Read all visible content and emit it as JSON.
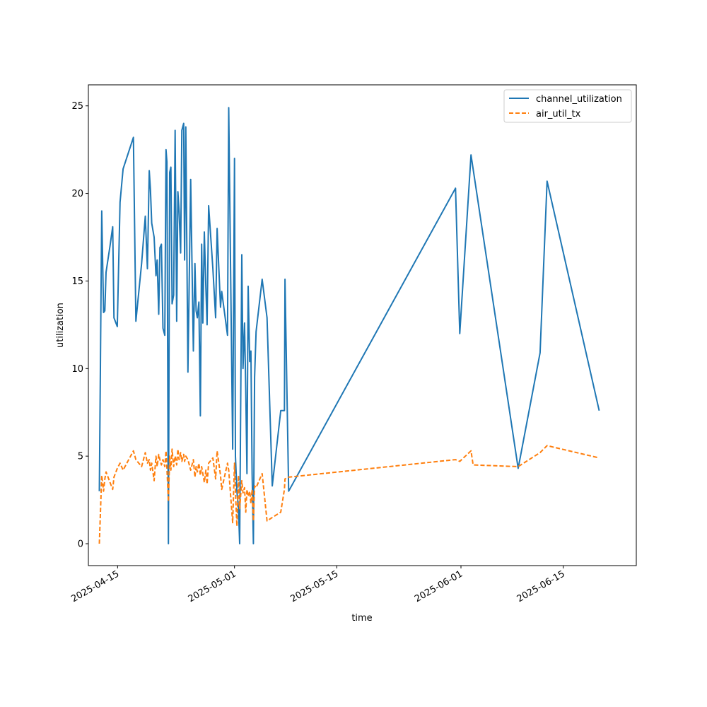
{
  "chart_data": {
    "type": "line",
    "title": "",
    "xlabel": "time",
    "ylabel": "utilization",
    "x_type": "date",
    "xlim": [
      "2025-04-11",
      "2025-06-25"
    ],
    "ylim": [
      -1.25,
      26.2
    ],
    "x_ticks": [
      "2025-04-15",
      "2025-05-01",
      "2025-05-15",
      "2025-06-01",
      "2025-06-15"
    ],
    "y_ticks": [
      0,
      5,
      10,
      15,
      20,
      25
    ],
    "legend": {
      "position": "top-right"
    },
    "grid": false,
    "series": [
      {
        "name": "channel_utilization",
        "color": "#1f77b4",
        "linestyle": "solid",
        "points": [
          [
            "2025-04-12T12:00",
            3.0
          ],
          [
            "2025-04-12T20:00",
            19.0
          ],
          [
            "2025-04-13T02:00",
            13.2
          ],
          [
            "2025-04-13T06:00",
            13.3
          ],
          [
            "2025-04-13T10:00",
            15.5
          ],
          [
            "2025-04-13T23:00",
            17.0
          ],
          [
            "2025-04-14T08:00",
            18.1
          ],
          [
            "2025-04-14T12:00",
            12.9
          ],
          [
            "2025-04-14T23:00",
            12.4
          ],
          [
            "2025-04-15T08:00",
            19.5
          ],
          [
            "2025-04-15T18:00",
            21.4
          ],
          [
            "2025-04-17T04:00",
            23.2
          ],
          [
            "2025-04-17T12:00",
            12.7
          ],
          [
            "2025-04-18T07:00",
            16.0
          ],
          [
            "2025-04-18T19:00",
            18.7
          ],
          [
            "2025-04-19T02:00",
            15.7
          ],
          [
            "2025-04-19T08:00",
            21.3
          ],
          [
            "2025-04-19T12:00",
            20.2
          ],
          [
            "2025-04-19T16:00",
            18.3
          ],
          [
            "2025-04-20T00:00",
            17.5
          ],
          [
            "2025-04-20T06:00",
            15.3
          ],
          [
            "2025-04-20T10:00",
            16.2
          ],
          [
            "2025-04-20T15:00",
            13.1
          ],
          [
            "2025-04-20T19:00",
            16.9
          ],
          [
            "2025-04-21T00:00",
            17.1
          ],
          [
            "2025-04-21T05:00",
            12.3
          ],
          [
            "2025-04-21T11:00",
            11.9
          ],
          [
            "2025-04-21T15:00",
            22.5
          ],
          [
            "2025-04-21T18:00",
            21.8
          ],
          [
            "2025-04-21T23:00",
            0.0
          ],
          [
            "2025-04-22T03:00",
            21.2
          ],
          [
            "2025-04-22T07:00",
            21.5
          ],
          [
            "2025-04-22T11:00",
            13.7
          ],
          [
            "2025-04-22T16:00",
            14.2
          ],
          [
            "2025-04-22T21:00",
            23.6
          ],
          [
            "2025-04-23T02:00",
            12.7
          ],
          [
            "2025-04-23T06:00",
            20.1
          ],
          [
            "2025-04-23T10:00",
            19.0
          ],
          [
            "2025-04-23T15:00",
            16.6
          ],
          [
            "2025-04-23T19:00",
            23.6
          ],
          [
            "2025-04-24T01:00",
            24.0
          ],
          [
            "2025-04-24T04:00",
            16.2
          ],
          [
            "2025-04-24T08:00",
            23.8
          ],
          [
            "2025-04-24T15:00",
            9.8
          ],
          [
            "2025-04-25T00:00",
            20.8
          ],
          [
            "2025-04-25T09:00",
            11.0
          ],
          [
            "2025-04-25T14:00",
            16.0
          ],
          [
            "2025-04-25T18:00",
            13.3
          ],
          [
            "2025-04-25T22:00",
            12.9
          ],
          [
            "2025-04-26T03:00",
            13.8
          ],
          [
            "2025-04-26T08:00",
            7.3
          ],
          [
            "2025-04-26T12:00",
            17.1
          ],
          [
            "2025-04-26T16:00",
            12.6
          ],
          [
            "2025-04-26T21:00",
            17.8
          ],
          [
            "2025-04-27T02:00",
            14.6
          ],
          [
            "2025-04-27T06:00",
            12.5
          ],
          [
            "2025-04-27T11:00",
            19.3
          ],
          [
            "2025-04-28T01:00",
            15.7
          ],
          [
            "2025-04-28T10:00",
            12.9
          ],
          [
            "2025-04-28T15:00",
            18.0
          ],
          [
            "2025-04-29T02:00",
            13.5
          ],
          [
            "2025-04-29T06:00",
            14.4
          ],
          [
            "2025-04-30T01:00",
            11.9
          ],
          [
            "2025-04-30T05:00",
            24.9
          ],
          [
            "2025-04-30T18:00",
            5.4
          ],
          [
            "2025-05-01T00:00",
            22.0
          ],
          [
            "2025-05-01T03:00",
            5.0
          ],
          [
            "2025-05-01T08:00",
            3.0
          ],
          [
            "2025-05-01T13:00",
            2.0
          ],
          [
            "2025-05-01T17:00",
            0.0
          ],
          [
            "2025-05-02T00:00",
            16.5
          ],
          [
            "2025-05-02T04:00",
            10.0
          ],
          [
            "2025-05-02T09:00",
            12.6
          ],
          [
            "2025-05-02T13:00",
            8.8
          ],
          [
            "2025-05-02T17:00",
            4.0
          ],
          [
            "2025-05-02T21:00",
            14.7
          ],
          [
            "2025-05-03T02:00",
            10.4
          ],
          [
            "2025-05-03T06:00",
            11.0
          ],
          [
            "2025-05-03T10:00",
            4.0
          ],
          [
            "2025-05-03T14:00",
            0.0
          ],
          [
            "2025-05-03T18:00",
            9.5
          ],
          [
            "2025-05-03T23:00",
            12.1
          ],
          [
            "2025-05-04T19:00",
            15.1
          ],
          [
            "2025-05-05T11:00",
            12.9
          ],
          [
            "2025-05-06T04:00",
            3.3
          ],
          [
            "2025-05-07T08:00",
            7.6
          ],
          [
            "2025-05-07T20:00",
            7.6
          ],
          [
            "2025-05-07T22:00",
            15.1
          ],
          [
            "2025-05-08T10:00",
            3.0
          ],
          [
            "2025-05-31T06:00",
            20.3
          ],
          [
            "2025-05-31T20:00",
            12.0
          ],
          [
            "2025-06-02T09:00",
            22.2
          ],
          [
            "2025-06-08T20:00",
            4.3
          ],
          [
            "2025-06-11T20:00",
            10.9
          ],
          [
            "2025-06-12T19:00",
            20.7
          ],
          [
            "2025-06-19T22:00",
            7.6
          ]
        ]
      },
      {
        "name": "air_util_tx",
        "color": "#ff7f0e",
        "linestyle": "dashed",
        "points": [
          [
            "2025-04-12T12:00",
            0.0
          ],
          [
            "2025-04-12T20:00",
            3.9
          ],
          [
            "2025-04-13T02:00",
            3.0
          ],
          [
            "2025-04-13T06:00",
            3.7
          ],
          [
            "2025-04-13T10:00",
            4.1
          ],
          [
            "2025-04-13T23:00",
            3.5
          ],
          [
            "2025-04-14T08:00",
            3.1
          ],
          [
            "2025-04-14T12:00",
            3.8
          ],
          [
            "2025-04-14T23:00",
            4.3
          ],
          [
            "2025-04-15T08:00",
            4.6
          ],
          [
            "2025-04-15T18:00",
            4.2
          ],
          [
            "2025-04-17T04:00",
            5.3
          ],
          [
            "2025-04-17T12:00",
            4.8
          ],
          [
            "2025-04-18T07:00",
            4.4
          ],
          [
            "2025-04-18T19:00",
            5.2
          ],
          [
            "2025-04-19T02:00",
            4.6
          ],
          [
            "2025-04-19T08:00",
            4.8
          ],
          [
            "2025-04-19T12:00",
            4.2
          ],
          [
            "2025-04-19T16:00",
            4.6
          ],
          [
            "2025-04-20T00:00",
            3.6
          ],
          [
            "2025-04-20T06:00",
            5.0
          ],
          [
            "2025-04-20T10:00",
            4.4
          ],
          [
            "2025-04-20T15:00",
            5.1
          ],
          [
            "2025-04-20T19:00",
            4.8
          ],
          [
            "2025-04-21T00:00",
            4.5
          ],
          [
            "2025-04-21T05:00",
            4.8
          ],
          [
            "2025-04-21T11:00",
            4.4
          ],
          [
            "2025-04-21T15:00",
            5.3
          ],
          [
            "2025-04-21T18:00",
            4.3
          ],
          [
            "2025-04-21T23:00",
            2.4
          ],
          [
            "2025-04-22T03:00",
            5.0
          ],
          [
            "2025-04-22T07:00",
            4.2
          ],
          [
            "2025-04-22T11:00",
            5.4
          ],
          [
            "2025-04-22T16:00",
            4.4
          ],
          [
            "2025-04-22T21:00",
            5.0
          ],
          [
            "2025-04-23T02:00",
            4.5
          ],
          [
            "2025-04-23T06:00",
            5.4
          ],
          [
            "2025-04-23T10:00",
            4.8
          ],
          [
            "2025-04-23T15:00",
            5.2
          ],
          [
            "2025-04-23T19:00",
            4.7
          ],
          [
            "2025-04-24T01:00",
            5.1
          ],
          [
            "2025-04-24T04:00",
            4.7
          ],
          [
            "2025-04-24T08:00",
            5.0
          ],
          [
            "2025-04-24T15:00",
            4.8
          ],
          [
            "2025-04-25T00:00",
            4.2
          ],
          [
            "2025-04-25T09:00",
            4.8
          ],
          [
            "2025-04-25T14:00",
            3.8
          ],
          [
            "2025-04-25T18:00",
            4.4
          ],
          [
            "2025-04-25T22:00",
            4.1
          ],
          [
            "2025-04-26T03:00",
            4.6
          ],
          [
            "2025-04-26T08:00",
            3.9
          ],
          [
            "2025-04-26T12:00",
            4.4
          ],
          [
            "2025-04-26T16:00",
            4.0
          ],
          [
            "2025-04-26T21:00",
            3.5
          ],
          [
            "2025-04-27T02:00",
            4.2
          ],
          [
            "2025-04-27T06:00",
            3.4
          ],
          [
            "2025-04-27T11:00",
            4.6
          ],
          [
            "2025-04-28T01:00",
            4.9
          ],
          [
            "2025-04-28T10:00",
            3.7
          ],
          [
            "2025-04-28T15:00",
            5.3
          ],
          [
            "2025-04-29T02:00",
            3.9
          ],
          [
            "2025-04-29T06:00",
            3.1
          ],
          [
            "2025-04-30T01:00",
            4.6
          ],
          [
            "2025-04-30T05:00",
            4.2
          ],
          [
            "2025-04-30T18:00",
            1.2
          ],
          [
            "2025-05-01T00:00",
            4.6
          ],
          [
            "2025-05-01T03:00",
            3.0
          ],
          [
            "2025-05-01T08:00",
            1.0
          ],
          [
            "2025-05-01T13:00",
            3.9
          ],
          [
            "2025-05-01T17:00",
            2.0
          ],
          [
            "2025-05-02T00:00",
            3.6
          ],
          [
            "2025-05-02T04:00",
            2.9
          ],
          [
            "2025-05-02T09:00",
            3.2
          ],
          [
            "2025-05-02T13:00",
            1.8
          ],
          [
            "2025-05-02T17:00",
            3.1
          ],
          [
            "2025-05-02T21:00",
            2.7
          ],
          [
            "2025-05-03T02:00",
            3.0
          ],
          [
            "2025-05-03T06:00",
            2.3
          ],
          [
            "2025-05-03T10:00",
            3.1
          ],
          [
            "2025-05-03T14:00",
            1.3
          ],
          [
            "2025-05-03T18:00",
            3.3
          ],
          [
            "2025-05-03T23:00",
            3.2
          ],
          [
            "2025-05-04T19:00",
            4.0
          ],
          [
            "2025-05-05T11:00",
            1.3
          ],
          [
            "2025-05-06T04:00",
            1.5
          ],
          [
            "2025-05-07T08:00",
            1.8
          ],
          [
            "2025-05-07T20:00",
            3.1
          ],
          [
            "2025-05-07T22:00",
            3.7
          ],
          [
            "2025-05-08T10:00",
            3.8
          ],
          [
            "2025-05-31T06:00",
            4.8
          ],
          [
            "2025-05-31T20:00",
            4.7
          ],
          [
            "2025-06-02T09:00",
            5.3
          ],
          [
            "2025-06-02T16:00",
            4.5
          ],
          [
            "2025-06-08T20:00",
            4.4
          ],
          [
            "2025-06-11T20:00",
            5.2
          ],
          [
            "2025-06-12T19:00",
            5.6
          ],
          [
            "2025-06-19T22:00",
            4.9
          ]
        ]
      }
    ]
  }
}
